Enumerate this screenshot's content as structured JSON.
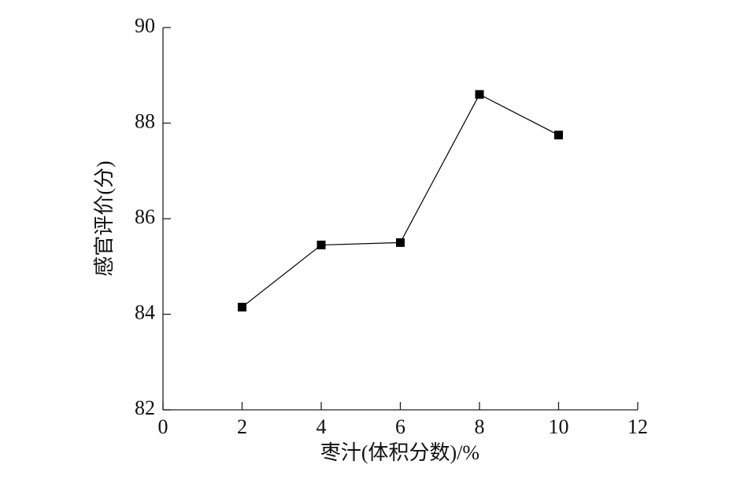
{
  "chart_data": {
    "type": "line",
    "x_label": "枣汁(体积分数)/%",
    "y_label": "感官评价(分)",
    "x": [
      2,
      4,
      6,
      8,
      10
    ],
    "series": [
      {
        "color": "#000000",
        "values": [
          84.15,
          85.45,
          85.5,
          88.6,
          87.75
        ]
      }
    ],
    "xlim": [
      0,
      12
    ],
    "xticks": [
      0,
      2,
      4,
      6,
      8,
      10,
      12
    ],
    "ylim": [
      82,
      90
    ],
    "yticks": [
      82,
      84,
      86,
      88,
      90
    ],
    "grid": false
  }
}
